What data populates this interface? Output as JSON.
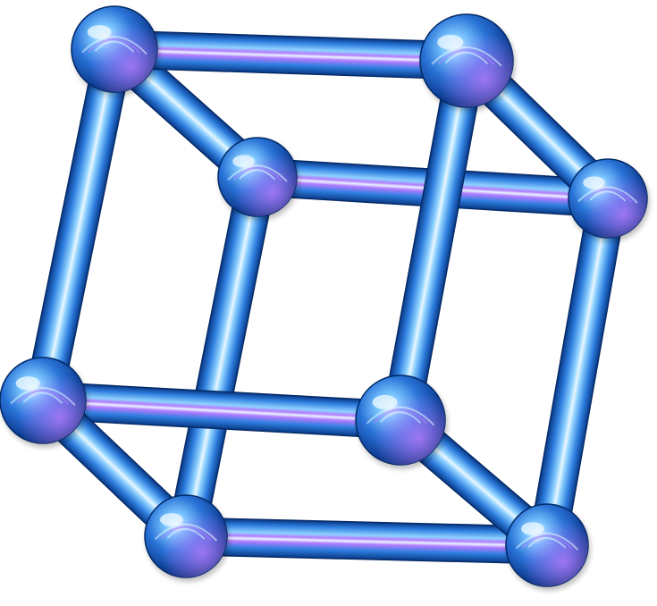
{
  "image": {
    "subject": "cube-wireframe",
    "palette": {
      "background": "#ffffff",
      "tube_dark": "#0b3f8f",
      "tube_mid": "#2f7fe0",
      "tube_light": "#8fd2ff",
      "highlight": "#e9f6ff",
      "violet_glow": "#b47cff",
      "violet_deep": "#6a2cc8",
      "sphere_dark": "#062a66"
    },
    "components": {
      "vertices": 8,
      "edges": 12
    }
  }
}
